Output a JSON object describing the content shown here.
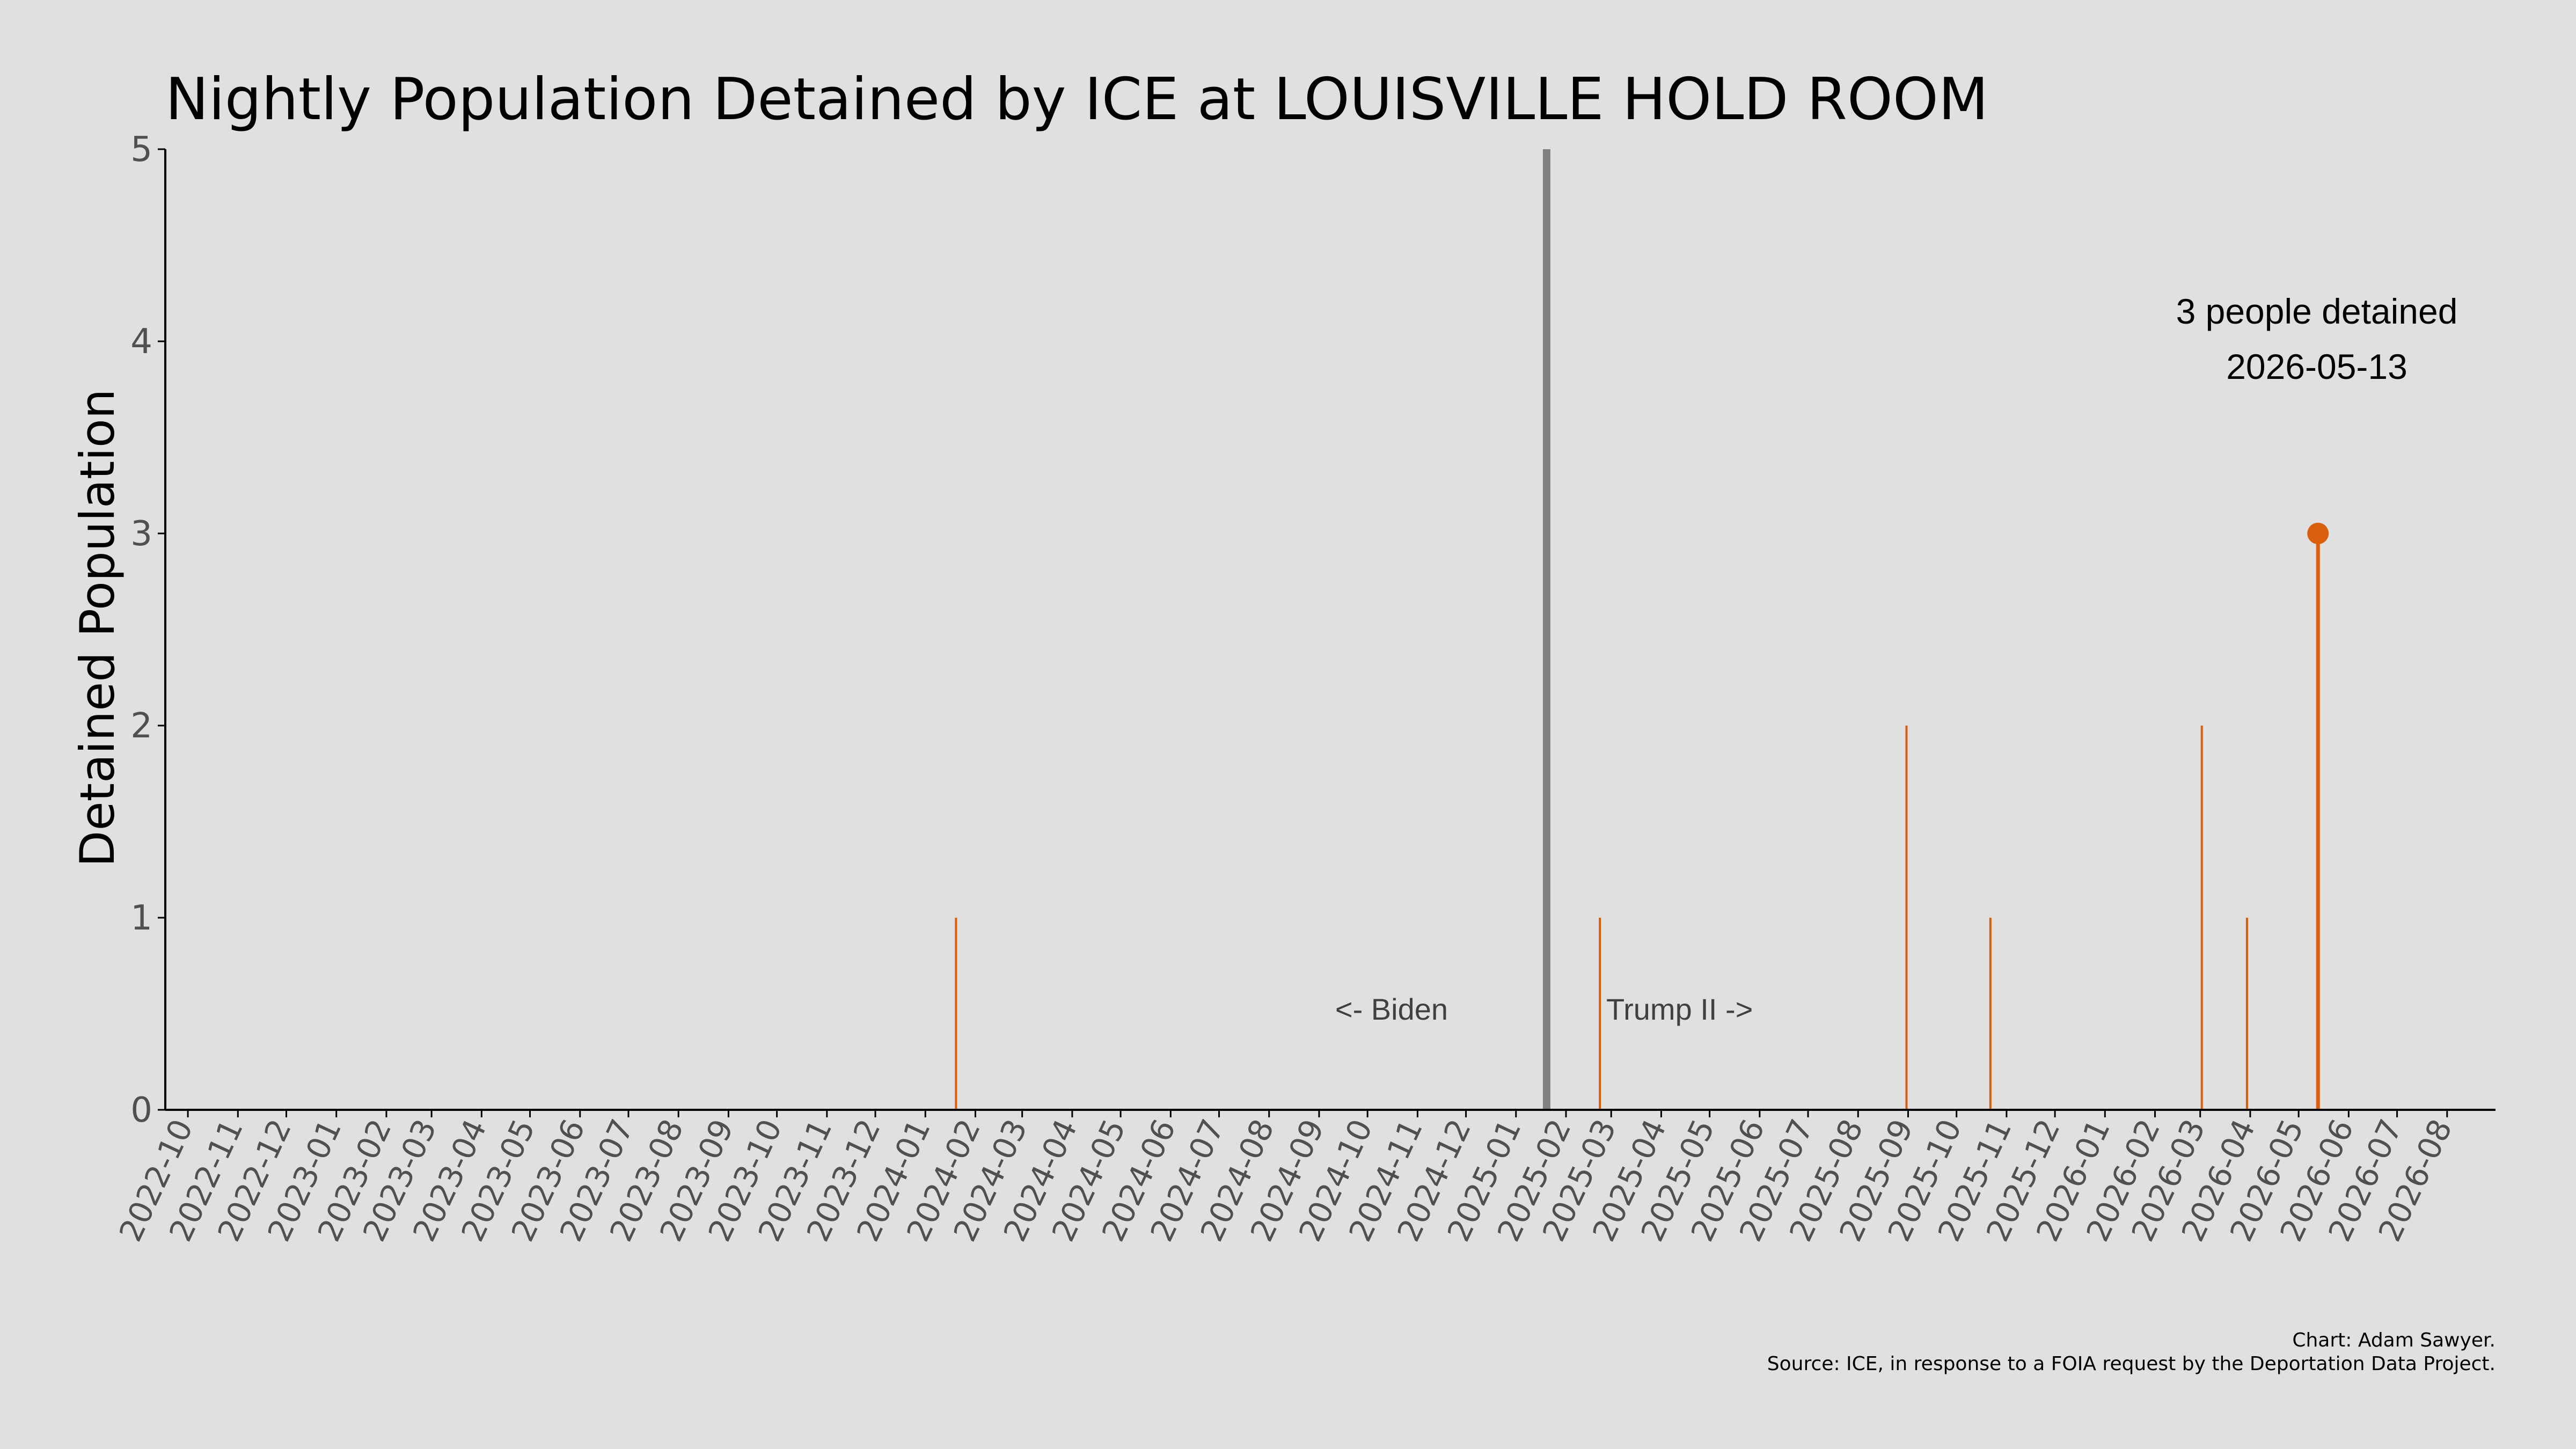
{
  "chart_data": {
    "type": "bar",
    "title": "Nightly Population Detained by ICE at LOUISVILLE HOLD ROOM",
    "xlabel": "",
    "ylabel": "Detained Population",
    "xlim": [
      "2022-09-17",
      "2026-08-31"
    ],
    "ylim": [
      0,
      5
    ],
    "y_ticks": [
      0,
      1,
      2,
      3,
      4,
      5
    ],
    "x_tick_labels": [
      "2022-10",
      "2022-11",
      "2022-12",
      "2023-01",
      "2023-02",
      "2023-03",
      "2023-04",
      "2023-05",
      "2023-06",
      "2023-07",
      "2023-08",
      "2023-09",
      "2023-10",
      "2023-11",
      "2023-12",
      "2024-01",
      "2024-02",
      "2024-03",
      "2024-04",
      "2024-05",
      "2024-06",
      "2024-07",
      "2024-08",
      "2024-09",
      "2024-10",
      "2024-11",
      "2024-12",
      "2025-01",
      "2025-02",
      "2025-03",
      "2025-04",
      "2025-05",
      "2025-06",
      "2025-07",
      "2025-08",
      "2025-09",
      "2025-10",
      "2025-11",
      "2025-12",
      "2026-01",
      "2026-02",
      "2026-03",
      "2026-04",
      "2026-05",
      "2026-06",
      "2026-07",
      "2026-08"
    ],
    "grid": false,
    "legend": "none",
    "series": [
      {
        "points": [
          {
            "x": "2024-01-20",
            "y": 1
          },
          {
            "x": "2025-02-22",
            "y": 1
          },
          {
            "x": "2025-08-31",
            "y": 2
          },
          {
            "x": "2025-10-22",
            "y": 1
          },
          {
            "x": "2026-03-02",
            "y": 2
          },
          {
            "x": "2026-03-30",
            "y": 1
          },
          {
            "x": "2026-05-13",
            "y": 3
          }
        ]
      }
    ],
    "highlight": {
      "x": "2026-05-13",
      "y": 3,
      "label_line1": "3 people detained",
      "label_line2": "2026-05-13"
    },
    "divider": {
      "x": "2025-01-20"
    },
    "era_labels": {
      "left": "<- Biden",
      "right": "Trump II ->"
    },
    "credits": {
      "line1": "Chart: Adam Sawyer.",
      "line2": "Source: ICE, in response to a FOIA request by the Deportation Data Project."
    },
    "colors": {
      "background": "#e0e0e0",
      "bar": "#d95f0e",
      "divider": "#808080",
      "axis": "#000000",
      "tick_text": "#505050"
    }
  }
}
